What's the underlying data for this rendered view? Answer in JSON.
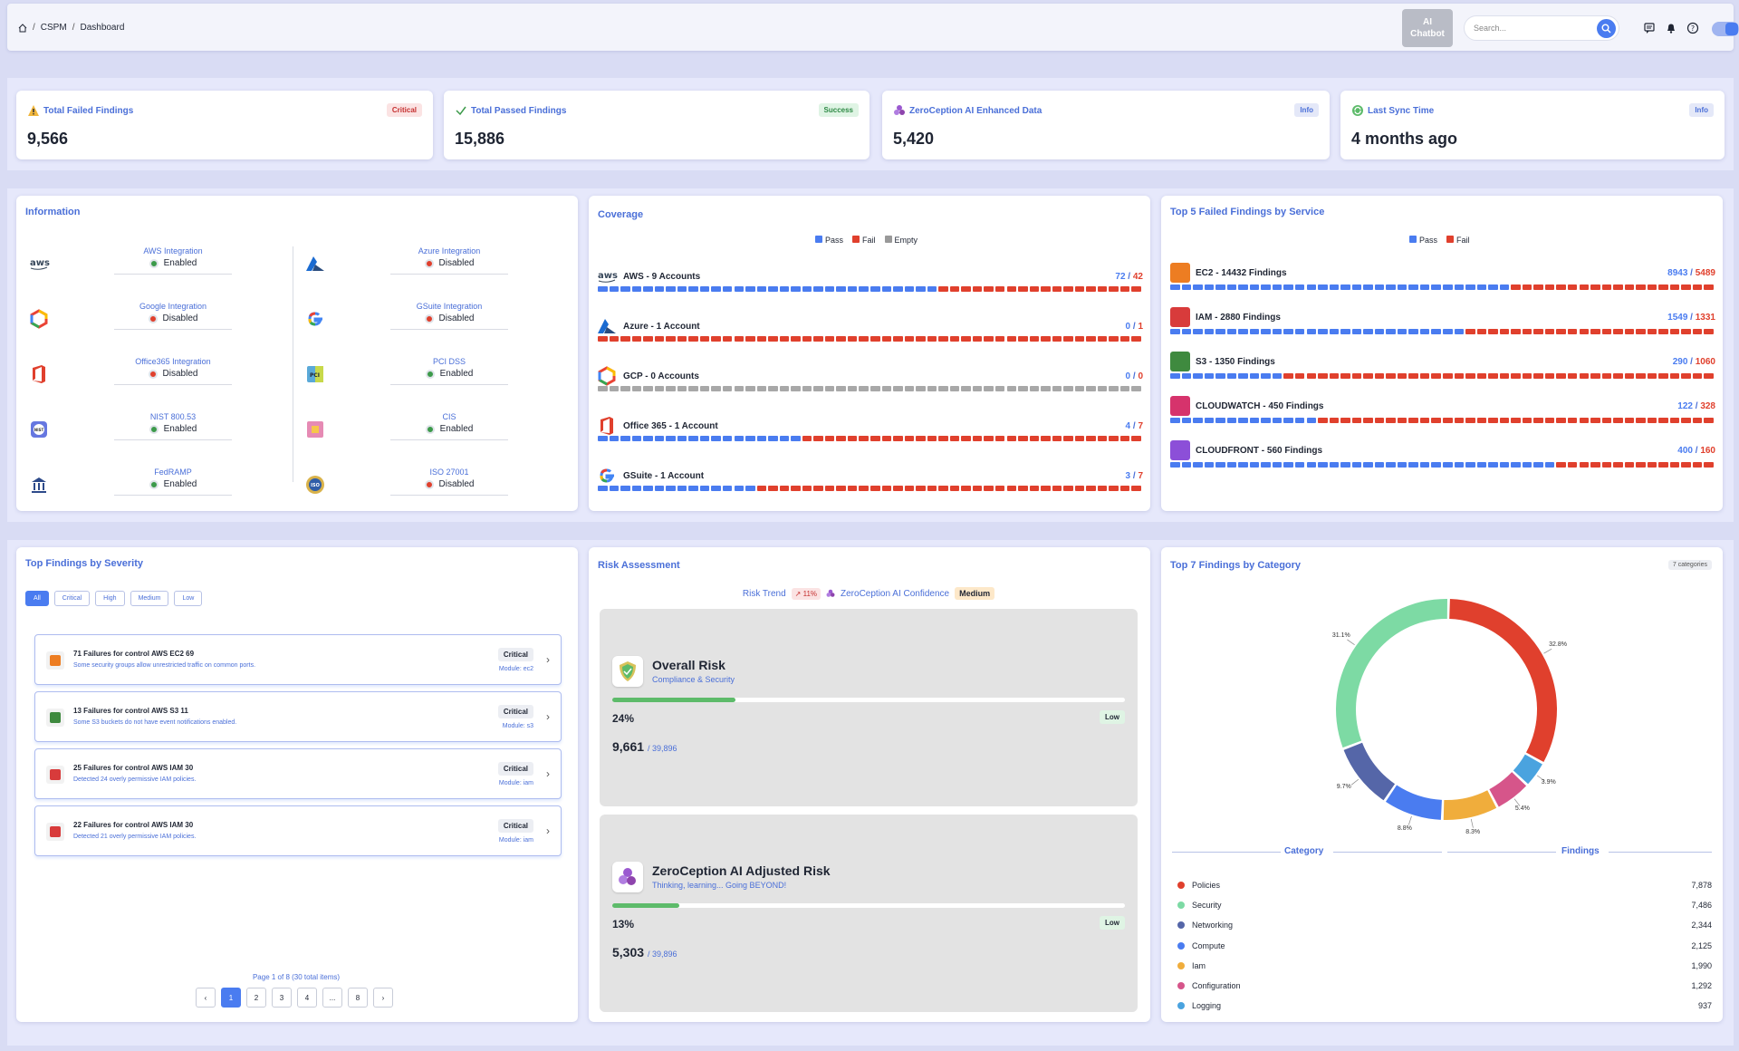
{
  "breadcrumb": [
    "CSPM",
    "Dashboard"
  ],
  "header": {
    "ai_line1": "AI",
    "ai_line2": "Chatbot",
    "search_placeholder": "Search..."
  },
  "kpis": [
    {
      "title": "Total Failed Findings",
      "value": "9,566",
      "badge": "Critical",
      "icon": "warning-icon"
    },
    {
      "title": "Total Passed Findings",
      "value": "15,886",
      "badge": "Success",
      "icon": "check-icon"
    },
    {
      "title": "ZeroCeption AI Enhanced Data",
      "value": "5,420",
      "badge": "Info",
      "icon": "ai-icon"
    },
    {
      "title": "Last Sync Time",
      "value": "4 months ago",
      "badge": "Info",
      "icon": "sync-icon"
    }
  ],
  "information": {
    "title": "Information",
    "items": [
      {
        "name": "AWS Integration",
        "status": "Enabled",
        "logo": "aws"
      },
      {
        "name": "Azure Integration",
        "status": "Disabled",
        "logo": "azure"
      },
      {
        "name": "Google Integration",
        "status": "Disabled",
        "logo": "gcp"
      },
      {
        "name": "GSuite Integration",
        "status": "Disabled",
        "logo": "google"
      },
      {
        "name": "Office365 Integration",
        "status": "Disabled",
        "logo": "office"
      },
      {
        "name": "PCI DSS",
        "status": "Enabled",
        "logo": "pci"
      },
      {
        "name": "NIST 800.53",
        "status": "Enabled",
        "logo": "nist"
      },
      {
        "name": "CIS",
        "status": "Enabled",
        "logo": "cis"
      },
      {
        "name": "FedRAMP",
        "status": "Enabled",
        "logo": "fedramp"
      },
      {
        "name": "ISO 27001",
        "status": "Disabled",
        "logo": "iso"
      }
    ]
  },
  "coverage": {
    "title": "Coverage",
    "legend": [
      "Pass",
      "Fail",
      "Empty"
    ],
    "rows": [
      {
        "label": "AWS - 9 Accounts",
        "pass": 72,
        "total": 42,
        "pass_segments": 30,
        "fail_segments": 18,
        "empty_segments": 0,
        "logo": "aws"
      },
      {
        "label": "Azure - 1 Account",
        "pass": 0,
        "total": 1,
        "pass_segments": 0,
        "fail_segments": 48,
        "empty_segments": 0,
        "logo": "azure"
      },
      {
        "label": "GCP - 0 Accounts",
        "pass": 0,
        "total": 0,
        "pass_segments": 0,
        "fail_segments": 0,
        "empty_segments": 48,
        "logo": "gcp"
      },
      {
        "label": "Office 365 - 1 Account",
        "pass": 4,
        "total": 7,
        "pass_segments": 18,
        "fail_segments": 30,
        "empty_segments": 0,
        "logo": "office"
      },
      {
        "label": "GSuite - 1 Account",
        "pass": 3,
        "total": 7,
        "pass_segments": 14,
        "fail_segments": 34,
        "empty_segments": 0,
        "logo": "google"
      }
    ]
  },
  "top_services": {
    "title": "Top 5 Failed Findings by Service",
    "legend": [
      "Pass",
      "Fail"
    ],
    "rows": [
      {
        "label": "EC2 - 14432 Findings",
        "pass": 8943,
        "fail": 5489,
        "color": "#ed7d22"
      },
      {
        "label": "IAM - 2880 Findings",
        "pass": 1549,
        "fail": 1331,
        "color": "#d83b3b"
      },
      {
        "label": "S3 - 1350 Findings",
        "pass": 290,
        "fail": 1060,
        "color": "#3f8a3f"
      },
      {
        "label": "CLOUDWATCH - 450 Findings",
        "pass": 122,
        "fail": 328,
        "color": "#d6336c"
      },
      {
        "label": "CLOUDFRONT - 560 Findings",
        "pass": 400,
        "fail": 160,
        "color": "#8c4fd8"
      }
    ]
  },
  "severity": {
    "title": "Top Findings by Severity",
    "filters": [
      "All",
      "Critical",
      "High",
      "Medium",
      "Low"
    ],
    "items": [
      {
        "title": "71 Failures for control AWS EC2 69",
        "desc": "Some security groups allow unrestricted traffic on common ports.",
        "badge": "Critical",
        "module": "Module: ec2",
        "color": "#ed7d22"
      },
      {
        "title": "13 Failures for control AWS S3 11",
        "desc": "Some S3 buckets do not have event notifications enabled.",
        "badge": "Critical",
        "module": "Module: s3",
        "color": "#3f8a3f"
      },
      {
        "title": "25 Failures for control AWS IAM 30",
        "desc": "Detected 24 overly permissive IAM policies.",
        "badge": "Critical",
        "module": "Module: iam",
        "color": "#d83b3b"
      },
      {
        "title": "22 Failures for control AWS IAM 30",
        "desc": "Detected 21 overly permissive IAM policies.",
        "badge": "Critical",
        "module": "Module: iam",
        "color": "#d83b3b"
      }
    ],
    "page_info": "Page 1 of 8 (30 total items)",
    "pages": [
      "‹",
      "1",
      "2",
      "3",
      "4",
      "...",
      "8",
      "›"
    ]
  },
  "risk": {
    "title": "Risk Assessment",
    "trend_label": "Risk Trend",
    "trend_value": "↗ 11%",
    "confidence_label": "ZeroCeption AI Confidence",
    "confidence_value": "Medium",
    "panels": [
      {
        "title": "Overall Risk",
        "sub": "Compliance & Security",
        "pct": "24%",
        "fraction": 0.24,
        "badge": "Low",
        "count": "9,661",
        "total": "/ 39,896"
      },
      {
        "title": "ZeroCeption AI Adjusted Risk",
        "sub": "Thinking, learning... Going BEYOND!",
        "pct": "13%",
        "fraction": 0.13,
        "badge": "Low",
        "count": "5,303",
        "total": "/ 39,896"
      }
    ]
  },
  "category": {
    "title": "Top 7 Findings by Category",
    "chip": "7 categories",
    "col_category": "Category",
    "col_findings": "Findings",
    "rows": [
      {
        "name": "Policies",
        "value": "7,878",
        "color": "#e0402d"
      },
      {
        "name": "Security",
        "value": "7,486",
        "color": "#7ddaa4"
      },
      {
        "name": "Networking",
        "value": "2,344",
        "color": "#5566a8"
      },
      {
        "name": "Compute",
        "value": "2,125",
        "color": "#4a7cf0"
      },
      {
        "name": "Iam",
        "value": "1,990",
        "color": "#f0ad3c"
      },
      {
        "name": "Configuration",
        "value": "1,292",
        "color": "#d6558a"
      },
      {
        "name": "Logging",
        "value": "937",
        "color": "#4aa3df"
      }
    ]
  },
  "chart_data": {
    "type": "pie",
    "categories": [
      "Policies",
      "Security",
      "Networking",
      "Compute",
      "Iam",
      "Configuration",
      "Logging"
    ],
    "values": [
      7878,
      7486,
      2344,
      2125,
      1990,
      1292,
      937
    ],
    "percent_labels": [
      "32.8%",
      "31.1%",
      "9.7%",
      "8.8%",
      "8.3%",
      "5.4%",
      "3.9%"
    ],
    "title": "Top 7 Findings by Category"
  }
}
